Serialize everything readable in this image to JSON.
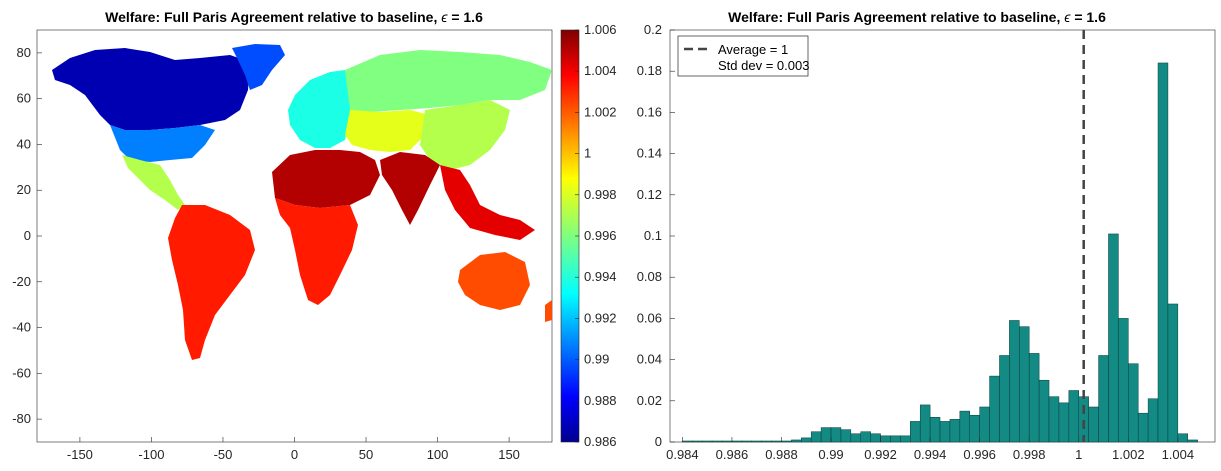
{
  "chart_data": [
    {
      "type": "heatmap",
      "title": "Welfare: Full Paris Agreement relative to baseline, ",
      "title_symbol": "ϵ",
      "title_suffix": " = 1.6",
      "xlim": [
        -180,
        180
      ],
      "ylim": [
        -90,
        90
      ],
      "x_ticks": [
        -150,
        -100,
        -50,
        0,
        50,
        100,
        150
      ],
      "y_ticks": [
        80,
        60,
        40,
        20,
        0,
        -20,
        -40,
        -60,
        -80
      ],
      "colormap": "jet",
      "clim": [
        0.986,
        1.006
      ],
      "colorbar_ticks": [
        "1.006",
        "1.004",
        "1.002",
        "1",
        "0.998",
        "0.996",
        "0.994",
        "0.992",
        "0.99",
        "0.988",
        "0.986"
      ],
      "regions": [
        {
          "name": "North America (north)",
          "value": 0.987
        },
        {
          "name": "North America (south)",
          "value": 0.991
        },
        {
          "name": "Greenland",
          "value": 0.99
        },
        {
          "name": "Central America",
          "value": 0.997
        },
        {
          "name": "South America",
          "value": 1.003
        },
        {
          "name": "Europe",
          "value": 0.994
        },
        {
          "name": "Russia",
          "value": 0.996
        },
        {
          "name": "Central Asia",
          "value": 0.998
        },
        {
          "name": "China",
          "value": 0.997
        },
        {
          "name": "North Africa & Middle East",
          "value": 1.005
        },
        {
          "name": "India",
          "value": 1.005
        },
        {
          "name": "Sub-Saharan Africa",
          "value": 1.003
        },
        {
          "name": "Southeast Asia",
          "value": 1.004
        },
        {
          "name": "Australia",
          "value": 1.002
        }
      ]
    },
    {
      "type": "bar",
      "title": "Welfare: Full Paris Agreement relative to baseline, ",
      "title_symbol": "ϵ",
      "title_suffix": " = 1.6",
      "xlim": [
        0.9835,
        1.0055
      ],
      "ylim": [
        0,
        0.2
      ],
      "x_ticks": [
        "0.984",
        "0.986",
        "0.988",
        "0.99",
        "0.992",
        "0.994",
        "0.996",
        "0.998",
        "1",
        "1.002",
        "1.004"
      ],
      "y_ticks": [
        "0",
        "0.02",
        "0.04",
        "0.06",
        "0.08",
        "0.1",
        "0.12",
        "0.14",
        "0.16",
        "0.18",
        "0.2"
      ],
      "bar_color": "#148a85",
      "bin_width": 0.0004,
      "bins_start": 0.984,
      "values": [
        0.0005,
        0.0005,
        0.0005,
        0.0005,
        0.0005,
        0.0005,
        0.0005,
        0.0005,
        0.0005,
        0.0005,
        0.0005,
        0.001,
        0.002,
        0.005,
        0.007,
        0.007,
        0.006,
        0.004,
        0.005,
        0.004,
        0.003,
        0.003,
        0.003,
        0.01,
        0.018,
        0.012,
        0.01,
        0.011,
        0.015,
        0.013,
        0.017,
        0.032,
        0.042,
        0.059,
        0.056,
        0.043,
        0.03,
        0.022,
        0.019,
        0.025,
        0.022,
        0.017,
        0.042,
        0.101,
        0.06,
        0.038,
        0.014,
        0.021,
        0.184,
        0.067,
        0.004,
        0.001
      ],
      "average_line": 1.0002,
      "legend": [
        "Average = 1",
        "Std dev = 0.003"
      ],
      "legend_position": "top-left"
    }
  ]
}
